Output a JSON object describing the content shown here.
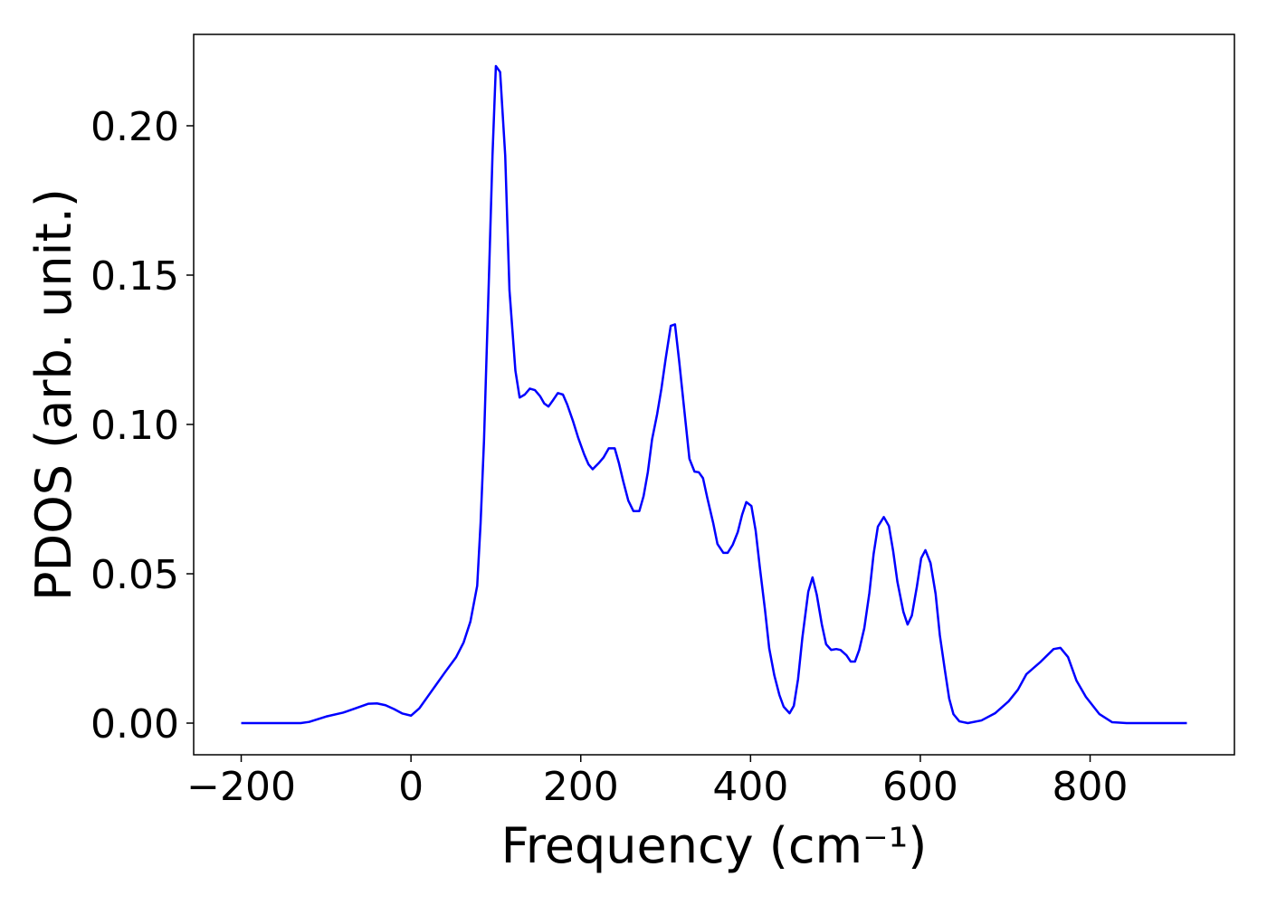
{
  "chart_data": {
    "type": "line",
    "xlabel": "Frequency (cm⁻¹)",
    "ylabel": "PDOS (arb. unit.)",
    "color": "#0000ff",
    "xlim": [
      -256,
      970
    ],
    "ylim": [
      -0.0106,
      0.2306
    ],
    "xticks": [
      {
        "value": -200,
        "label": "−200"
      },
      0,
      200,
      400,
      600,
      800
    ],
    "yticks": [
      {
        "value": 0,
        "label": "0.00"
      },
      0.05,
      {
        "value": 0.1,
        "label": "0.10"
      },
      0.15,
      {
        "value": 0.2,
        "label": "0.20"
      }
    ],
    "x": [
      -200,
      -130,
      -120,
      -100,
      -80,
      -65,
      -50,
      -40,
      -30,
      -20,
      -10,
      0,
      10,
      20,
      30,
      40,
      53,
      62,
      70,
      78,
      82,
      86,
      92,
      96,
      100,
      105,
      111,
      116,
      123,
      128,
      134,
      140,
      146,
      152,
      157,
      162,
      167,
      173,
      179,
      184,
      191,
      197,
      204,
      209,
      214,
      221,
      227,
      233,
      240,
      245,
      250,
      256,
      262,
      269,
      274,
      279,
      284,
      290,
      295,
      300,
      306,
      311,
      316,
      323,
      328,
      334,
      339,
      344,
      349,
      356,
      361,
      368,
      373,
      379,
      385,
      390,
      395,
      401,
      406,
      411,
      417,
      422,
      428,
      434,
      439,
      446,
      451,
      456,
      461,
      468,
      473,
      478,
      484,
      489,
      495,
      501,
      506,
      513,
      518,
      523,
      528,
      534,
      540,
      545,
      550,
      557,
      563,
      568,
      573,
      580,
      585,
      590,
      596,
      601,
      606,
      612,
      618,
      623,
      629,
      634,
      639,
      646,
      656,
      672,
      688,
      704,
      715,
      725,
      742,
      757,
      765,
      774,
      784,
      795,
      811,
      826,
      843,
      914
    ],
    "values": [
      0,
      0,
      0.0004,
      0.0022,
      0.0035,
      0.005,
      0.0065,
      0.0066,
      0.006,
      0.0047,
      0.0032,
      0.0025,
      0.005,
      0.009,
      0.013,
      0.017,
      0.022,
      0.027,
      0.034,
      0.046,
      0.067,
      0.0945,
      0.151,
      0.19,
      0.22,
      0.218,
      0.19,
      0.145,
      0.118,
      0.109,
      0.11,
      0.112,
      0.1115,
      0.1095,
      0.107,
      0.106,
      0.108,
      0.1105,
      0.11,
      0.1067,
      0.101,
      0.0955,
      0.09,
      0.0867,
      0.085,
      0.087,
      0.089,
      0.092,
      0.092,
      0.087,
      0.081,
      0.0745,
      0.071,
      0.071,
      0.076,
      0.084,
      0.095,
      0.1035,
      0.112,
      0.122,
      0.133,
      0.1335,
      0.121,
      0.102,
      0.0885,
      0.0842,
      0.084,
      0.082,
      0.0755,
      0.067,
      0.06,
      0.057,
      0.057,
      0.0597,
      0.064,
      0.0697,
      0.074,
      0.0727,
      0.0645,
      0.052,
      0.038,
      0.025,
      0.016,
      0.0094,
      0.0055,
      0.0033,
      0.0058,
      0.0148,
      0.0285,
      0.044,
      0.0488,
      0.043,
      0.033,
      0.0264,
      0.0245,
      0.0248,
      0.0245,
      0.0227,
      0.0206,
      0.0206,
      0.0245,
      0.0318,
      0.0436,
      0.0567,
      0.0658,
      0.069,
      0.066,
      0.0576,
      0.0473,
      0.0373,
      0.033,
      0.036,
      0.0458,
      0.0552,
      0.0579,
      0.0536,
      0.0433,
      0.0294,
      0.0176,
      0.0082,
      0.003,
      0.0006,
      0,
      0.0009,
      0.0033,
      0.0073,
      0.0112,
      0.0164,
      0.0206,
      0.0248,
      0.0252,
      0.0221,
      0.0142,
      0.0088,
      0.003,
      0.0003,
      0,
      0
    ]
  }
}
